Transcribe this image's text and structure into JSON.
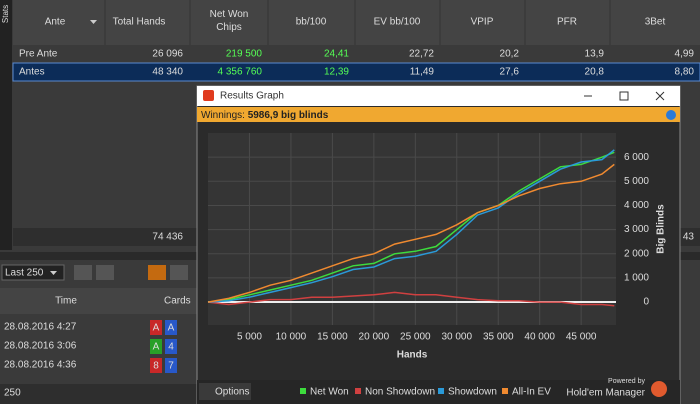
{
  "sidebar_label": "Stats",
  "stats_table": {
    "columns": [
      "Ante",
      "Total Hands",
      "Net Won Chips",
      "bb/100",
      "EV bb/100",
      "VPIP",
      "PFR",
      "3Bet"
    ],
    "rows": [
      [
        "Pre Ante",
        "26 096",
        "219 500",
        "24,41",
        "22,72",
        "20,2",
        "13,9",
        "4,99"
      ],
      [
        "Antes",
        "48 340",
        "4 356 760",
        "12,39",
        "11,49",
        "27,6",
        "20,8",
        "8,80"
      ]
    ],
    "footer": [
      "74 436",
      "43"
    ]
  },
  "filter": "Last 250",
  "hands_table": {
    "columns": [
      "Time",
      "Cards"
    ],
    "rows": [
      {
        "time": "28.08.2016 4:27",
        "cards": [
          "A",
          "A"
        ]
      },
      {
        "time": "28.08.2016 3:06",
        "cards": [
          "A",
          "4"
        ]
      },
      {
        "time": "28.08.2016 4:36",
        "cards": [
          "8",
          "7"
        ]
      }
    ]
  },
  "status": "250",
  "window": {
    "title": "Results Graph",
    "winnings_label": "Winnings:",
    "winnings_value": "5986,9 big blinds",
    "options": "Options",
    "powered_by": "Powered by",
    "brand": "Hold'em Manager"
  },
  "chart_data": {
    "type": "line",
    "x_label": "Hands",
    "y_label": "Big Blinds",
    "x": [
      0,
      2500,
      5000,
      7500,
      10000,
      12500,
      15000,
      17500,
      20000,
      22500,
      25000,
      27500,
      30000,
      32500,
      35000,
      37500,
      40000,
      42500,
      45000,
      47500,
      49000
    ],
    "series": [
      {
        "name": "Net Won",
        "color": "#3ddc3d",
        "values": [
          0,
          100,
          300,
          500,
          700,
          900,
          1200,
          1500,
          1600,
          2000,
          2100,
          2300,
          3000,
          3700,
          4000,
          4600,
          5100,
          5600,
          5700,
          6000,
          6200
        ]
      },
      {
        "name": "Non Showdown",
        "color": "#d04040",
        "values": [
          0,
          -100,
          0,
          100,
          100,
          200,
          200,
          250,
          300,
          400,
          300,
          300,
          200,
          100,
          50,
          50,
          0,
          0,
          -100,
          -100,
          -150
        ]
      },
      {
        "name": "Showdown",
        "color": "#2a9ad8",
        "values": [
          0,
          50,
          200,
          400,
          600,
          800,
          1050,
          1350,
          1450,
          1800,
          1900,
          2100,
          2800,
          3600,
          3900,
          4500,
          5000,
          5500,
          5800,
          5900,
          6300
        ]
      },
      {
        "name": "All-In EV",
        "color": "#f08a30",
        "values": [
          0,
          150,
          400,
          700,
          900,
          1200,
          1500,
          1800,
          2000,
          2400,
          2600,
          2800,
          3200,
          3700,
          4000,
          4400,
          4700,
          4900,
          5000,
          5300,
          5700
        ]
      }
    ],
    "xlim": [
      0,
      49200
    ],
    "ylim": [
      -950,
      7000
    ],
    "xticks": [
      {
        "value": 5000,
        "label": "5 000"
      },
      {
        "value": 10000,
        "label": "10 000"
      },
      {
        "value": 15000,
        "label": "15 000"
      },
      {
        "value": 20000,
        "label": "20 000"
      },
      {
        "value": 25000,
        "label": "25 000"
      },
      {
        "value": 30000,
        "label": "30 000"
      },
      {
        "value": 35000,
        "label": "35 000"
      },
      {
        "value": 40000,
        "label": "40 000"
      },
      {
        "value": 45000,
        "label": "45 000"
      }
    ],
    "yticks": [
      0,
      {
        "value": 1000,
        "label": "1 000"
      },
      {
        "value": 2000,
        "label": "2 000"
      },
      {
        "value": 3000,
        "label": "3 000"
      },
      {
        "value": 4000,
        "label": "4 000"
      },
      {
        "value": 5000,
        "label": "5 000"
      },
      {
        "value": 6000,
        "label": "6 000"
      }
    ],
    "grid": true
  }
}
